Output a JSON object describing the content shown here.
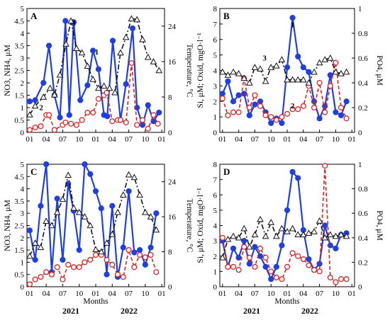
{
  "chart_data": [
    {
      "panel": "A",
      "type": "line",
      "x_tick_labels": [
        "01",
        "04",
        "07",
        "10",
        "01",
        "04",
        "07",
        "10",
        "01"
      ],
      "ylabel_left": "NO3, NH4, μM",
      "ylabel_right": "Temperature, °C",
      "ylim_left": [
        0,
        5
      ],
      "yticks_left": [
        "0",
        "0.5",
        "1",
        "1.5",
        "2",
        "2.5",
        "3",
        "3.5",
        "4",
        "4.5",
        "5"
      ],
      "ylim_right": [
        0,
        28
      ],
      "yticks_right": [
        "0",
        "8",
        "16",
        "24"
      ],
      "xlim": [
        0,
        25
      ],
      "curve_labels": [
        {
          "text": "1",
          "x": 12.7,
          "y": 3.15,
          "axis": "left"
        },
        {
          "text": "2",
          "x": 2.6,
          "y": 0.9,
          "axis": "left"
        },
        {
          "text": "3",
          "x": 8.5,
          "y": 4.3,
          "axis": "left"
        }
      ],
      "series": [
        {
          "color": "#1f3fe0",
          "style": "solid",
          "marker": "circle-filled",
          "axis": "left",
          "x": [
            0.5,
            1.5,
            3,
            4,
            5,
            6,
            7,
            7.7,
            8.5,
            9.7,
            11,
            12,
            13,
            14,
            14.6,
            15.6,
            17,
            18,
            19.2,
            20,
            21,
            22,
            23,
            24
          ],
          "y": [
            1.25,
            1.3,
            2.0,
            3.5,
            1.5,
            0.6,
            4.5,
            0.7,
            4.45,
            1.3,
            1.9,
            3.3,
            2.55,
            0.7,
            0.65,
            3.7,
            0.5,
            1.95,
            4.2,
            1.0,
            0.3,
            1.1,
            0.45,
            0.8
          ]
        },
        {
          "color": "#e02020",
          "style": "dashed",
          "marker": "circle-open",
          "axis": "left",
          "x": [
            0.5,
            1.5,
            2.5,
            3.5,
            4,
            5,
            6.5,
            7,
            8,
            9,
            10,
            11,
            12,
            13,
            14,
            14.5,
            15.5,
            16.5,
            17,
            18,
            19,
            20,
            21,
            22,
            23,
            23.8
          ],
          "y": [
            0.1,
            0.2,
            0.25,
            0.7,
            0.7,
            0.1,
            0.3,
            0.4,
            0.35,
            0.3,
            0.5,
            0.8,
            0.8,
            1.35,
            1.5,
            1.6,
            0.45,
            0.5,
            0.5,
            0.4,
            2.8,
            0.3,
            0.5,
            0.15,
            0.7,
            0.35
          ]
        },
        {
          "color": "#111111",
          "style": "dashdot",
          "marker": "triangle-open",
          "axis": "right",
          "x": [
            0.5,
            1.5,
            3,
            4.2,
            5,
            6,
            7.1,
            8,
            9,
            10,
            11,
            12,
            13,
            14,
            15,
            16,
            17,
            18,
            19,
            20,
            21,
            22,
            23,
            24
          ],
          "y": [
            4,
            6,
            8,
            10,
            8.5,
            13,
            20,
            25.2,
            19,
            18,
            15,
            12,
            10,
            10.5,
            10,
            9,
            18,
            21.5,
            25.7,
            25.5,
            21,
            17,
            16,
            14
          ]
        }
      ]
    },
    {
      "panel": "B",
      "type": "line",
      "x_tick_labels": [
        "01",
        "04",
        "07",
        "10",
        "01",
        "04",
        "07",
        "10",
        "01"
      ],
      "ylabel_left": "Si, μM; Oxid, mgO·l⁻¹",
      "ylabel_right": "PO4, μM",
      "ylim_left": [
        0,
        8
      ],
      "yticks_left": [
        "0",
        "1",
        "2",
        "3",
        "4",
        "5",
        "6",
        "7",
        "8"
      ],
      "ylim_right": [
        0,
        1
      ],
      "yticks_right": [
        "0",
        "0.2",
        "0.4",
        "0.6",
        "0.8",
        "1"
      ],
      "xlim": [
        0,
        25
      ],
      "curve_labels": [
        {
          "text": "1",
          "x": 13.5,
          "y": 6.8,
          "axis": "left"
        },
        {
          "text": "2",
          "x": 13.5,
          "y": 1.55,
          "axis": "left"
        },
        {
          "text": "3",
          "x": 8.3,
          "y": 4.65,
          "axis": "left"
        }
      ],
      "series": [
        {
          "color": "#1f3fe0",
          "style": "solid",
          "marker": "circle-filled",
          "axis": "left",
          "x": [
            0.5,
            1.5,
            2.5,
            3.5,
            4.5,
            5.5,
            6.5,
            7.5,
            8.5,
            9.5,
            10.5,
            11.5,
            12.5,
            13.5,
            14.5,
            15.5,
            16.5,
            17.5,
            18.5,
            19.5,
            20.5,
            21.5,
            22.5,
            23.5
          ],
          "y": [
            2.5,
            3.3,
            2.0,
            2.4,
            2.5,
            1.1,
            1.8,
            2.0,
            1.3,
            0.6,
            0.9,
            0.6,
            4.2,
            7.4,
            4.9,
            4.2,
            3.9,
            2.0,
            0.9,
            1.7,
            3.7,
            1.3,
            1.1,
            2.0
          ]
        },
        {
          "color": "#e02020",
          "style": "dashed",
          "marker": "circle-open",
          "axis": "left",
          "x": [
            0.5,
            1.5,
            2.5,
            3.5,
            4.5,
            5.5,
            6.5,
            7.5,
            8.5,
            9.5,
            10.5,
            11.5,
            12.5,
            13.5,
            14.5,
            15.5,
            16.5,
            17.5,
            18.5,
            19.5,
            20.5,
            21.5,
            22.5,
            23.5
          ],
          "y": [
            2.2,
            1.1,
            1.3,
            1.3,
            3.5,
            1.6,
            2.4,
            1.7,
            1.1,
            1.0,
            0.8,
            1.0,
            1.2,
            1.5,
            1.5,
            1.7,
            3.0,
            1.6,
            3.2,
            1.3,
            3.0,
            4.5,
            1.6,
            0.9
          ]
        },
        {
          "color": "#111111",
          "style": "dashdot",
          "marker": "triangle-open",
          "axis": "left",
          "x": [
            0.5,
            1.5,
            2.5,
            3.5,
            4.5,
            5.5,
            6.5,
            7.5,
            8.5,
            9.5,
            10.5,
            11.5,
            12.5,
            13.5,
            14.5,
            15.5,
            16.5,
            17.5,
            18.5,
            19.5,
            20.5,
            21.5,
            22.5,
            23.5
          ],
          "y": [
            3.9,
            3.7,
            3.9,
            3.8,
            3.5,
            3.2,
            4.2,
            4.1,
            3.3,
            4.2,
            4.3,
            4.7,
            3.4,
            3.4,
            3.4,
            3.4,
            3.2,
            3.9,
            4.5,
            4.7,
            4.8,
            3.9,
            3.8,
            3.9
          ]
        }
      ]
    },
    {
      "panel": "C",
      "type": "line",
      "x_tick_labels": [
        "01",
        "04",
        "07",
        "10",
        "01",
        "04",
        "07",
        "10",
        "01"
      ],
      "ylabel_left": "NO3, NH4, μM",
      "ylabel_right": "Temperature, °C",
      "ylim_left": [
        0,
        5
      ],
      "yticks_left": [
        "0",
        "0.5",
        "1",
        "1.5",
        "2",
        "2.5",
        "3",
        "3.5",
        "4",
        "4.5",
        "5"
      ],
      "ylim_right": [
        0,
        28
      ],
      "yticks_right": [
        "0",
        "8",
        "16",
        "24"
      ],
      "xlim": [
        0,
        25
      ],
      "series": [
        {
          "color": "#1f3fe0",
          "style": "solid",
          "marker": "circle-filled",
          "axis": "left",
          "x": [
            0.5,
            1.5,
            2.5,
            3.5,
            4.5,
            5.5,
            6.5,
            7.5,
            8.5,
            9.5,
            10.5,
            11.5,
            12.5,
            13.5,
            14.5,
            15.5,
            16.5,
            17.5,
            18.5,
            19.5,
            20.5,
            21.5,
            22.5,
            23.5
          ],
          "y": [
            2.3,
            1.1,
            3.3,
            5.0,
            0.6,
            3.6,
            1.1,
            4.2,
            3.1,
            1.5,
            5.0,
            4.6,
            3.9,
            3.2,
            0.5,
            3.3,
            0.4,
            1.6,
            3.9,
            1.4,
            1.5,
            0.9,
            1.6,
            3.0
          ]
        },
        {
          "color": "#e02020",
          "style": "dashed",
          "marker": "circle-open",
          "axis": "left",
          "x": [
            0.5,
            1.5,
            2.5,
            3.5,
            4.5,
            5.5,
            6.5,
            7.5,
            8.5,
            9.5,
            10.5,
            11.5,
            12.5,
            13.5,
            14.5,
            15.5,
            16.5,
            17.5,
            18.5,
            19.5,
            20.5,
            21.5,
            22.5,
            23.5
          ],
          "y": [
            0.1,
            0.3,
            0.4,
            0.6,
            0.5,
            0.8,
            0.3,
            0.9,
            0.8,
            0.8,
            1.0,
            1.1,
            1.3,
            1.3,
            1.1,
            0.9,
            0.5,
            0.4,
            1.5,
            0.8,
            1.3,
            1.2,
            1.3,
            0.6
          ]
        },
        {
          "color": "#111111",
          "style": "dashdot",
          "marker": "triangle-open",
          "axis": "right",
          "x": [
            0.5,
            1.5,
            2.5,
            3.5,
            4.5,
            5.5,
            6.5,
            7.5,
            8.5,
            9.5,
            10.5,
            11.5,
            12.5,
            13.5,
            14.5,
            15.5,
            16.5,
            17.5,
            18.5,
            19.5,
            20.5,
            21.5,
            22.5,
            23.5
          ],
          "y": [
            7,
            10,
            9,
            15,
            14,
            17,
            20,
            25.5,
            18,
            17,
            16,
            14,
            8.5,
            8,
            10,
            12,
            17,
            21,
            25.6,
            25,
            21,
            17,
            16,
            13
          ]
        }
      ]
    },
    {
      "panel": "D",
      "type": "line",
      "x_tick_labels": [
        "01",
        "04",
        "07",
        "10",
        "01",
        "04",
        "07",
        "10",
        "01"
      ],
      "ylabel_left": "Si, μM; Oxid, mgO·l⁻¹",
      "ylabel_right": "PO4, μM",
      "ylim_left": [
        0,
        8
      ],
      "yticks_left": [
        "0",
        "1",
        "2",
        "3",
        "4",
        "5",
        "6",
        "7",
        "8"
      ],
      "ylim_right": [
        0,
        1
      ],
      "yticks_right": [
        "0",
        "0.2",
        "0.4",
        "0.6",
        "0.8",
        "1"
      ],
      "xlim": [
        0,
        25
      ],
      "series": [
        {
          "color": "#1f3fe0",
          "style": "solid",
          "marker": "circle-filled",
          "axis": "left",
          "x": [
            0.5,
            1.5,
            2.5,
            3.5,
            4.5,
            5.5,
            6.5,
            7.5,
            8.5,
            9.5,
            10.5,
            11.5,
            12.5,
            13.5,
            14.5,
            15.5,
            16.5,
            17.5,
            18.5,
            19.5,
            20.5,
            21.5,
            22.5,
            23.5
          ],
          "y": [
            3.0,
            1.3,
            2.5,
            1.9,
            3.0,
            1.5,
            2.6,
            2.0,
            1.3,
            0.5,
            1.3,
            2.7,
            5.0,
            7.5,
            7.1,
            3.7,
            1.8,
            1.1,
            1.5,
            4.0,
            2.7,
            2.5,
            3.4,
            3.5
          ]
        },
        {
          "color": "#e02020",
          "style": "dashed",
          "marker": "circle-open",
          "axis": "left",
          "x": [
            0.5,
            1.5,
            2.5,
            3.5,
            4.5,
            5.5,
            6.5,
            7.5,
            8.5,
            9.5,
            10.5,
            11.5,
            12.5,
            13.5,
            14.5,
            15.5,
            16.5,
            17.5,
            18.5,
            19.5,
            20.5,
            21.5,
            22.5,
            23.5
          ],
          "y": [
            3.2,
            1.3,
            1.3,
            1.1,
            2.6,
            1.9,
            1.3,
            2.5,
            1.9,
            1.0,
            0.6,
            0.5,
            1.3,
            2.2,
            2.0,
            1.8,
            1.4,
            1.1,
            1.0,
            7.9,
            0.6,
            0.3,
            0.5,
            0.5
          ]
        },
        {
          "color": "#111111",
          "style": "dashdot",
          "marker": "triangle-open",
          "axis": "left",
          "x": [
            0.5,
            1.5,
            2.5,
            3.5,
            4.5,
            5.5,
            6.5,
            7.5,
            8.5,
            9.5,
            10.5,
            11.5,
            12.5,
            13.5,
            14.5,
            15.5,
            16.5,
            17.5,
            18.5,
            19.5,
            20.5,
            21.5,
            22.5,
            23.5
          ],
          "y": [
            1.9,
            3.1,
            3.3,
            3.2,
            3.8,
            2.6,
            3.4,
            4.4,
            3.3,
            4.2,
            3.3,
            3.8,
            3.6,
            3.8,
            3.4,
            3.4,
            3.5,
            3.6,
            4.3,
            3.2,
            3.4,
            3.3,
            3.4,
            3.3
          ]
        }
      ]
    }
  ],
  "footer": {
    "months_label": "Months",
    "year_2021": "2021",
    "year_2022": "2022"
  }
}
